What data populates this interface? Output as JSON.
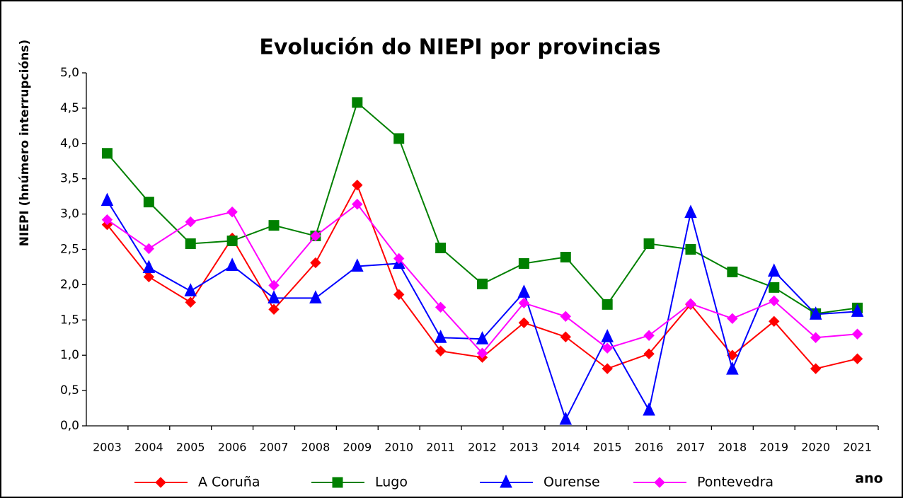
{
  "chart_data": {
    "type": "line",
    "title": "Evolución do NIEPI por provincias",
    "y_label": "NIEPI (hnúmero interrupcións)",
    "x_label": "ano",
    "categories": [
      "2003",
      "2004",
      "2005",
      "2006",
      "2007",
      "2008",
      "2009",
      "2010",
      "2011",
      "2012",
      "2013",
      "2014",
      "2015",
      "2016",
      "2017",
      "2018",
      "2019",
      "2020",
      "2021"
    ],
    "series": [
      {
        "name": "A Coruña",
        "color": "#ff0000",
        "marker": "diamond",
        "values": [
          2.85,
          2.11,
          1.75,
          2.66,
          1.65,
          2.31,
          3.41,
          1.86,
          1.06,
          0.97,
          1.46,
          1.26,
          0.81,
          1.02,
          1.72,
          1.0,
          1.48,
          0.81,
          0.95
        ]
      },
      {
        "name": "Lugo",
        "color": "#008000",
        "marker": "square",
        "values": [
          3.86,
          3.17,
          2.58,
          2.62,
          2.84,
          2.69,
          4.58,
          4.07,
          2.52,
          2.01,
          2.3,
          2.39,
          1.72,
          2.58,
          2.5,
          2.18,
          1.96,
          1.59,
          1.67
        ]
      },
      {
        "name": "Ourense",
        "color": "#0000ff",
        "marker": "triangle",
        "values": [
          3.19,
          2.24,
          1.91,
          2.27,
          1.81,
          1.81,
          2.26,
          2.3,
          1.25,
          1.23,
          1.89,
          0.09,
          1.26,
          0.22,
          3.02,
          0.8,
          2.19,
          1.58,
          1.62
        ]
      },
      {
        "name": "Pontevedra",
        "color": "#ff00ff",
        "marker": "diamond",
        "values": [
          2.92,
          2.51,
          2.89,
          3.03,
          1.99,
          2.69,
          3.14,
          2.37,
          1.68,
          1.03,
          1.74,
          1.55,
          1.1,
          1.28,
          1.73,
          1.52,
          1.77,
          1.25,
          1.3
        ]
      }
    ],
    "ylim": [
      0,
      5
    ],
    "yticks": [
      {
        "value": 0,
        "label": "0,0"
      },
      {
        "value": 0.5,
        "label": "0,5"
      },
      {
        "value": 1,
        "label": "1,0"
      },
      {
        "value": 1.5,
        "label": "1,5"
      },
      {
        "value": 2,
        "label": "2,0"
      },
      {
        "value": 2.5,
        "label": "2,5"
      },
      {
        "value": 3,
        "label": "3,0"
      },
      {
        "value": 3.5,
        "label": "3,5"
      },
      {
        "value": 4,
        "label": "4,0"
      },
      {
        "value": 4.5,
        "label": "4,5"
      },
      {
        "value": 5,
        "label": "5,0"
      }
    ],
    "grid": false,
    "legend": "bottom"
  }
}
